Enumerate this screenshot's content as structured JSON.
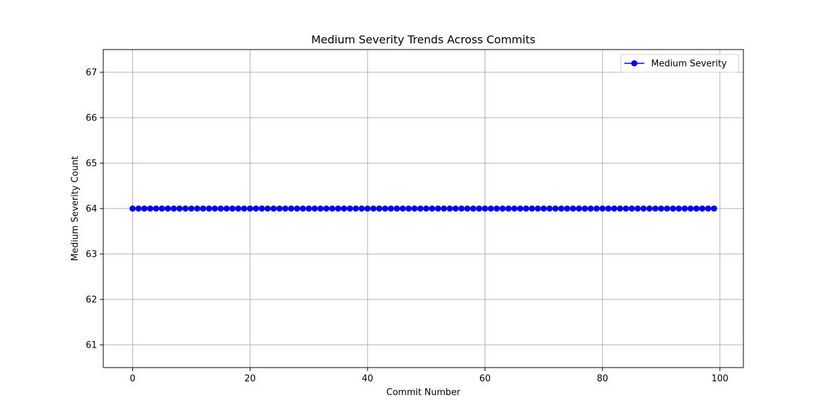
{
  "chart_data": {
    "type": "line",
    "title": "Medium Severity Trends Across Commits",
    "xlabel": "Commit Number",
    "ylabel": "Medium Severity Count",
    "xlim": [
      -5,
      104
    ],
    "ylim": [
      60.5,
      67.5
    ],
    "xticks": [
      0,
      20,
      40,
      60,
      80,
      100
    ],
    "yticks": [
      61,
      62,
      63,
      64,
      65,
      66,
      67
    ],
    "xtick_labels": [
      "0",
      "20",
      "40",
      "60",
      "80",
      "100"
    ],
    "ytick_labels": [
      "61",
      "62",
      "63",
      "64",
      "65",
      "66",
      "67"
    ],
    "grid": true,
    "legend": {
      "placement": "top-right",
      "entries": [
        "Medium Severity"
      ]
    },
    "series": [
      {
        "name": "Medium Severity",
        "color": "#0000ff",
        "marker": "circle",
        "x": [
          0,
          1,
          2,
          3,
          4,
          5,
          6,
          7,
          8,
          9,
          10,
          11,
          12,
          13,
          14,
          15,
          16,
          17,
          18,
          19,
          20,
          21,
          22,
          23,
          24,
          25,
          26,
          27,
          28,
          29,
          30,
          31,
          32,
          33,
          34,
          35,
          36,
          37,
          38,
          39,
          40,
          41,
          42,
          43,
          44,
          45,
          46,
          47,
          48,
          49,
          50,
          51,
          52,
          53,
          54,
          55,
          56,
          57,
          58,
          59,
          60,
          61,
          62,
          63,
          64,
          65,
          66,
          67,
          68,
          69,
          70,
          71,
          72,
          73,
          74,
          75,
          76,
          77,
          78,
          79,
          80,
          81,
          82,
          83,
          84,
          85,
          86,
          87,
          88,
          89,
          90,
          91,
          92,
          93,
          94,
          95,
          96,
          97,
          98,
          99
        ],
        "values": [
          64,
          64,
          64,
          64,
          64,
          64,
          64,
          64,
          64,
          64,
          64,
          64,
          64,
          64,
          64,
          64,
          64,
          64,
          64,
          64,
          64,
          64,
          64,
          64,
          64,
          64,
          64,
          64,
          64,
          64,
          64,
          64,
          64,
          64,
          64,
          64,
          64,
          64,
          64,
          64,
          64,
          64,
          64,
          64,
          64,
          64,
          64,
          64,
          64,
          64,
          64,
          64,
          64,
          64,
          64,
          64,
          64,
          64,
          64,
          64,
          64,
          64,
          64,
          64,
          64,
          64,
          64,
          64,
          64,
          64,
          64,
          64,
          64,
          64,
          64,
          64,
          64,
          64,
          64,
          64,
          64,
          64,
          64,
          64,
          64,
          64,
          64,
          64,
          64,
          64,
          64,
          64,
          64,
          64,
          64,
          64,
          64,
          64,
          64,
          64
        ]
      }
    ]
  }
}
